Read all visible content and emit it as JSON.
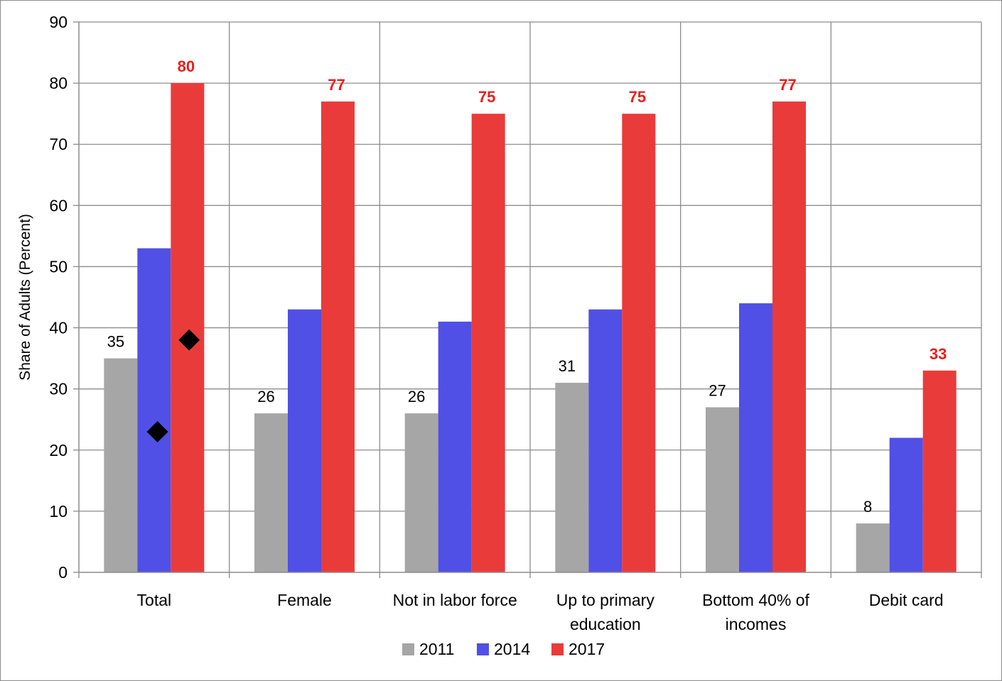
{
  "chart_data": {
    "type": "bar",
    "title": "",
    "xlabel": "",
    "ylabel": "Share of Adults (Percent)",
    "ylim": [
      0,
      90
    ],
    "y_ticks": [
      0,
      10,
      20,
      30,
      40,
      50,
      60,
      70,
      80,
      90
    ],
    "grid": true,
    "legend_position": "bottom",
    "categories": [
      [
        "Total"
      ],
      [
        "Female"
      ],
      [
        "Not in labor force"
      ],
      [
        "Up to primary",
        "education"
      ],
      [
        "Bottom 40% of",
        "incomes"
      ],
      [
        "Debit card"
      ]
    ],
    "series": [
      {
        "name": "2011",
        "color": "#a6a6a6",
        "values": [
          35,
          26,
          26,
          31,
          27,
          8
        ],
        "labels": [
          "35",
          "26",
          "26",
          "31",
          "27",
          "8"
        ],
        "label_color": "#000000",
        "label_bold": false
      },
      {
        "name": "2014",
        "color": "#5050e6",
        "values": [
          53,
          43,
          41,
          43,
          44,
          22
        ],
        "labels": null
      },
      {
        "name": "2017",
        "color": "#ea3b3b",
        "values": [
          80,
          77,
          75,
          75,
          77,
          33
        ],
        "labels": [
          "80",
          "77",
          "75",
          "75",
          "77",
          "33"
        ],
        "label_color": "#e8201c",
        "label_bold": true
      }
    ],
    "markers": [
      {
        "category": "Total",
        "series": "2014",
        "value": 23,
        "shape": "diamond",
        "color": "#000000"
      },
      {
        "category": "Total",
        "series": "2017",
        "value": 38,
        "shape": "diamond",
        "color": "#000000"
      }
    ]
  }
}
